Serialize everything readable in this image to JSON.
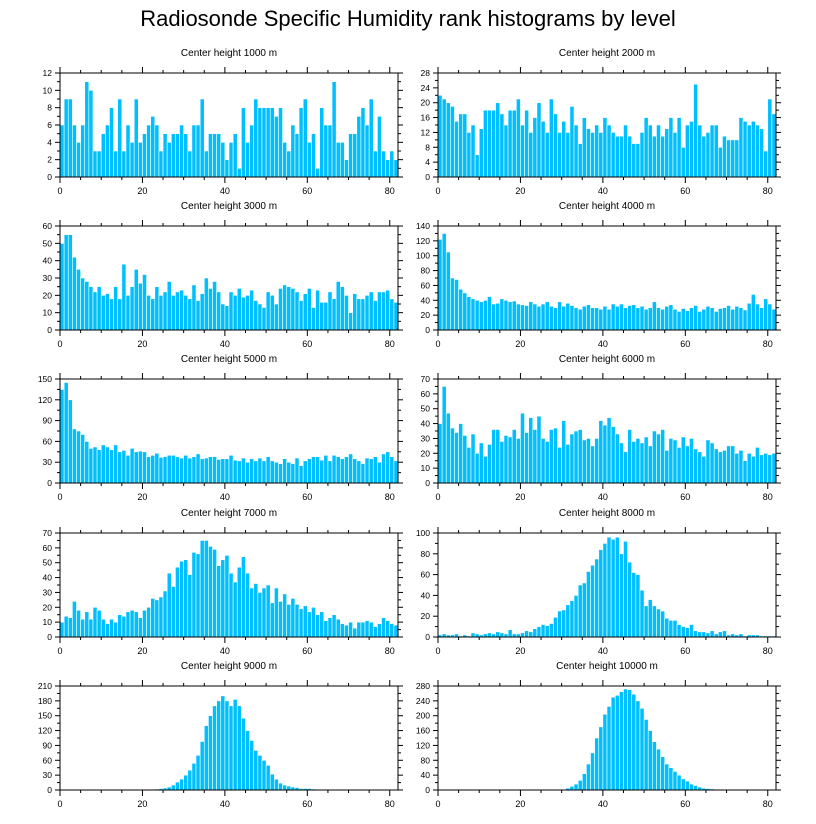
{
  "title": "Radiosonde Specific Humidity rank histograms by level",
  "colors": {
    "bar": "#00bfff",
    "bar_edge": "#ffffff",
    "axis": "#000000"
  },
  "chart_data": [
    {
      "type": "bar",
      "title": "Center height 1000 m",
      "xlabel": "",
      "ylabel": "",
      "xlim": [
        0,
        82
      ],
      "ylim": [
        0,
        12
      ],
      "xticks": [
        0,
        20,
        40,
        60,
        80
      ],
      "yticks": [
        0,
        2,
        4,
        6,
        8,
        10,
        12
      ],
      "values": [
        6,
        9,
        9,
        6,
        4,
        6,
        11,
        10,
        3,
        3,
        5,
        6,
        8,
        3,
        9,
        3,
        6,
        4,
        9,
        4,
        5,
        6,
        7,
        6,
        3,
        5,
        4,
        5,
        5,
        6,
        5,
        3,
        6,
        6,
        9,
        3,
        5,
        5,
        5,
        4,
        2,
        4,
        5,
        1,
        8,
        4,
        6,
        9,
        8,
        8,
        8,
        8,
        7,
        8,
        4,
        3,
        6,
        5,
        8,
        9,
        4,
        5,
        1,
        8,
        6,
        6,
        11,
        4,
        4,
        2,
        5,
        5,
        7,
        8,
        6,
        9,
        3,
        7,
        3,
        2,
        3,
        2
      ]
    },
    {
      "type": "bar",
      "title": "Center height 2000 m",
      "xlabel": "",
      "ylabel": "",
      "xlim": [
        0,
        82
      ],
      "ylim": [
        0,
        28
      ],
      "xticks": [
        0,
        20,
        40,
        60,
        80
      ],
      "yticks": [
        0,
        4,
        8,
        12,
        16,
        20,
        24,
        28
      ],
      "values": [
        22,
        21,
        20,
        19,
        15,
        17,
        17,
        12,
        14,
        6,
        13,
        18,
        18,
        18,
        20,
        17,
        14,
        18,
        18,
        21,
        14,
        18,
        12,
        16,
        20,
        15,
        12,
        21,
        17,
        12,
        15,
        12,
        19,
        14,
        9,
        16,
        13,
        12,
        14,
        12,
        16,
        14,
        12,
        11,
        11,
        14,
        11,
        9,
        9,
        12,
        16,
        14,
        11,
        14,
        11,
        13,
        16,
        12,
        16,
        8,
        14,
        15,
        25,
        14,
        11,
        12,
        14,
        14,
        8,
        11,
        10,
        10,
        10,
        16,
        15,
        14,
        15,
        14,
        13,
        7,
        21,
        17
      ]
    },
    {
      "type": "bar",
      "title": "Center height 3000 m",
      "xlabel": "",
      "ylabel": "",
      "xlim": [
        0,
        82
      ],
      "ylim": [
        0,
        60
      ],
      "xticks": [
        0,
        20,
        40,
        60,
        80
      ],
      "yticks": [
        0,
        10,
        20,
        30,
        40,
        50,
        60
      ],
      "values": [
        50,
        55,
        55,
        42,
        35,
        30,
        28,
        25,
        22,
        25,
        20,
        21,
        18,
        25,
        18,
        38,
        20,
        25,
        35,
        27,
        32,
        20,
        18,
        25,
        20,
        22,
        28,
        20,
        22,
        23,
        20,
        18,
        26,
        17,
        21,
        30,
        24,
        28,
        22,
        15,
        14,
        22,
        20,
        24,
        19,
        20,
        23,
        17,
        15,
        13,
        22,
        20,
        15,
        24,
        26,
        25,
        24,
        22,
        17,
        21,
        24,
        13,
        23,
        16,
        16,
        22,
        18,
        28,
        25,
        20,
        10,
        21,
        18,
        18,
        20,
        22,
        17,
        22,
        22,
        23,
        18,
        16
      ]
    },
    {
      "type": "bar",
      "title": "Center height 4000 m",
      "xlabel": "",
      "ylabel": "",
      "xlim": [
        0,
        82
      ],
      "ylim": [
        0,
        140
      ],
      "xticks": [
        0,
        20,
        40,
        60,
        80
      ],
      "yticks": [
        0,
        20,
        40,
        60,
        80,
        100,
        120,
        140
      ],
      "values": [
        122,
        130,
        105,
        70,
        68,
        55,
        50,
        45,
        42,
        40,
        38,
        40,
        45,
        35,
        36,
        42,
        40,
        38,
        39,
        35,
        34,
        33,
        38,
        35,
        32,
        35,
        38,
        32,
        30,
        38,
        32,
        36,
        33,
        30,
        28,
        32,
        34,
        30,
        30,
        28,
        32,
        28,
        35,
        32,
        35,
        30,
        33,
        34,
        30,
        32,
        28,
        30,
        38,
        30,
        28,
        32,
        34,
        28,
        25,
        29,
        26,
        30,
        33,
        25,
        28,
        32,
        30,
        25,
        29,
        30,
        33,
        28,
        32,
        30,
        27,
        36,
        48,
        35,
        30,
        42,
        35,
        28
      ]
    },
    {
      "type": "bar",
      "title": "Center height 5000 m",
      "xlabel": "",
      "ylabel": "",
      "xlim": [
        0,
        82
      ],
      "ylim": [
        0,
        150
      ],
      "xticks": [
        0,
        20,
        40,
        60,
        80
      ],
      "yticks": [
        0,
        30,
        60,
        90,
        120,
        150
      ],
      "values": [
        135,
        145,
        120,
        78,
        75,
        70,
        60,
        50,
        52,
        48,
        55,
        52,
        48,
        55,
        45,
        47,
        40,
        50,
        45,
        46,
        45,
        38,
        40,
        43,
        37,
        38,
        40,
        40,
        38,
        36,
        40,
        36,
        38,
        42,
        35,
        36,
        38,
        38,
        34,
        35,
        35,
        40,
        33,
        32,
        36,
        30,
        35,
        32,
        36,
        32,
        38,
        32,
        30,
        28,
        35,
        30,
        28,
        36,
        25,
        32,
        35,
        38,
        38,
        33,
        40,
        32,
        40,
        38,
        35,
        38,
        42,
        35,
        32,
        28,
        36,
        35,
        38,
        30,
        42,
        45,
        38,
        32
      ]
    },
    {
      "type": "bar",
      "title": "Center height 6000 m",
      "xlabel": "",
      "ylabel": "",
      "xlim": [
        0,
        82
      ],
      "ylim": [
        0,
        70
      ],
      "xticks": [
        0,
        20,
        40,
        60,
        80
      ],
      "yticks": [
        0,
        10,
        20,
        30,
        40,
        50,
        60,
        70
      ],
      "values": [
        40,
        65,
        47,
        37,
        34,
        40,
        32,
        24,
        33,
        20,
        27,
        18,
        26,
        36,
        36,
        28,
        32,
        31,
        36,
        30,
        47,
        34,
        44,
        36,
        45,
        30,
        28,
        36,
        37,
        24,
        42,
        26,
        33,
        35,
        36,
        29,
        30,
        25,
        30,
        42,
        39,
        44,
        38,
        33,
        27,
        21,
        36,
        28,
        30,
        27,
        31,
        25,
        35,
        33,
        36,
        22,
        30,
        29,
        24,
        31,
        25,
        30,
        23,
        21,
        18,
        29,
        27,
        23,
        21,
        22,
        25,
        25,
        20,
        22,
        15,
        20,
        18,
        24,
        19,
        20,
        19,
        20
      ]
    },
    {
      "type": "bar",
      "title": "Center height 7000 m",
      "xlabel": "",
      "ylabel": "",
      "xlim": [
        0,
        82
      ],
      "ylim": [
        0,
        70
      ],
      "xticks": [
        0,
        20,
        40,
        60,
        80
      ],
      "yticks": [
        0,
        10,
        20,
        30,
        40,
        50,
        60,
        70
      ],
      "values": [
        10,
        14,
        13,
        24,
        18,
        12,
        17,
        12,
        20,
        18,
        12,
        9,
        12,
        10,
        15,
        14,
        17,
        18,
        17,
        13,
        18,
        20,
        26,
        25,
        27,
        31,
        43,
        34,
        47,
        51,
        52,
        42,
        57,
        56,
        65,
        65,
        61,
        59,
        48,
        52,
        55,
        43,
        37,
        47,
        54,
        43,
        33,
        36,
        30,
        33,
        35,
        23,
        33,
        24,
        29,
        22,
        26,
        22,
        19,
        21,
        17,
        20,
        15,
        17,
        11,
        13,
        15,
        12,
        9,
        8,
        10,
        6,
        10,
        10,
        11,
        10,
        7,
        9,
        13,
        11,
        9,
        8
      ]
    },
    {
      "type": "bar",
      "title": "Center height 8000 m",
      "xlabel": "",
      "ylabel": "",
      "xlim": [
        0,
        82
      ],
      "ylim": [
        0,
        100
      ],
      "xticks": [
        0,
        20,
        40,
        60,
        80
      ],
      "yticks": [
        0,
        20,
        40,
        60,
        80,
        100
      ],
      "values": [
        2,
        3,
        2,
        2,
        3,
        1,
        2,
        1,
        4,
        3,
        2,
        3,
        4,
        3,
        5,
        4,
        3,
        7,
        3,
        3,
        4,
        6,
        5,
        8,
        10,
        12,
        11,
        13,
        19,
        25,
        26,
        31,
        35,
        40,
        50,
        52,
        63,
        69,
        75,
        84,
        90,
        96,
        94,
        96,
        80,
        92,
        72,
        62,
        60,
        45,
        30,
        36,
        30,
        27,
        25,
        18,
        16,
        16,
        12,
        10,
        9,
        12,
        6,
        5,
        5,
        4,
        6,
        3,
        5,
        6,
        2,
        3,
        2,
        3,
        1,
        2,
        2,
        2,
        1,
        1,
        1,
        1
      ]
    },
    {
      "type": "bar",
      "title": "Center height 9000 m",
      "xlabel": "",
      "ylabel": "",
      "xlim": [
        0,
        82
      ],
      "ylim": [
        0,
        210
      ],
      "xticks": [
        0,
        20,
        40,
        60,
        80
      ],
      "yticks": [
        0,
        30,
        60,
        90,
        120,
        150,
        180,
        210
      ],
      "values": [
        0,
        0,
        0,
        0,
        0,
        0,
        0,
        0,
        0,
        0,
        0,
        0,
        0,
        0,
        0,
        0,
        0,
        0,
        0,
        0,
        0,
        1,
        1,
        2,
        3,
        4,
        6,
        10,
        16,
        22,
        30,
        40,
        54,
        70,
        98,
        130,
        150,
        170,
        180,
        190,
        180,
        170,
        183,
        170,
        145,
        120,
        100,
        80,
        70,
        60,
        50,
        32,
        22,
        14,
        10,
        8,
        6,
        5,
        3,
        3,
        3,
        2,
        1,
        1,
        1,
        0,
        0,
        0,
        0,
        0,
        0,
        0,
        0,
        0,
        0,
        0,
        0,
        0,
        0,
        0,
        0,
        0
      ]
    },
    {
      "type": "bar",
      "title": "Center height 10000 m",
      "xlabel": "",
      "ylabel": "",
      "xlim": [
        0,
        82
      ],
      "ylim": [
        0,
        280
      ],
      "xticks": [
        0,
        20,
        40,
        60,
        80
      ],
      "yticks": [
        0,
        40,
        80,
        120,
        160,
        200,
        240,
        280
      ],
      "values": [
        0,
        0,
        0,
        0,
        0,
        0,
        0,
        0,
        0,
        0,
        0,
        0,
        0,
        0,
        0,
        0,
        0,
        0,
        0,
        0,
        0,
        0,
        0,
        0,
        0,
        0,
        0,
        0,
        0,
        1,
        2,
        5,
        10,
        16,
        26,
        44,
        70,
        100,
        140,
        170,
        204,
        225,
        250,
        255,
        265,
        272,
        270,
        258,
        240,
        220,
        190,
        160,
        130,
        110,
        90,
        70,
        60,
        50,
        40,
        30,
        24,
        16,
        12,
        8,
        5,
        4,
        3,
        2,
        1,
        1,
        1,
        0,
        0,
        0,
        0,
        0,
        0,
        0,
        0,
        0,
        0,
        0
      ]
    }
  ]
}
